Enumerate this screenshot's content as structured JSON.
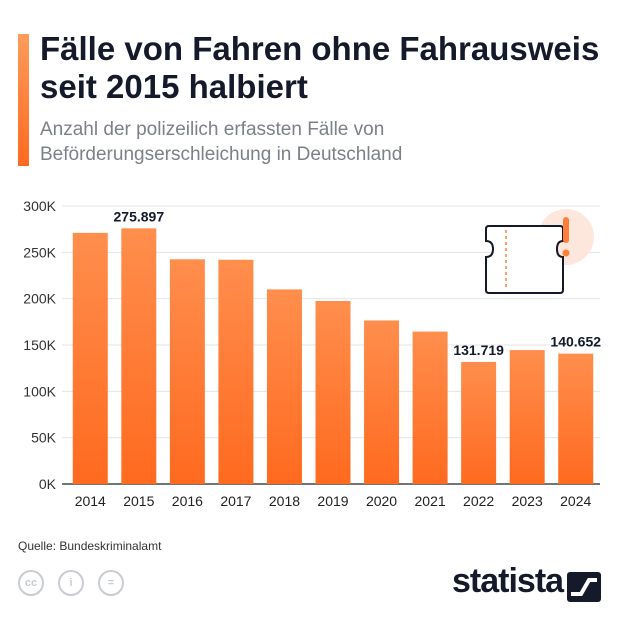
{
  "header": {
    "title": "Fälle von Fahren ohne Fahrausweis seit 2015 halbiert",
    "subtitle": "Anzahl der polizeilich erfassten Fälle von Beförderungserschleichung in Deutschland"
  },
  "footer": {
    "source": "Quelle: Bundeskriminalamt",
    "brand": "statista",
    "license_icons": [
      "cc-icon",
      "person-icon",
      "equal-icon"
    ],
    "license_glyphs": [
      "cc",
      "i",
      "="
    ]
  },
  "colors": {
    "bar_top": "#ff8e4d",
    "bar_bottom": "#ff6a1f",
    "accent": "#ff7f3a",
    "text_dark": "#141a2a",
    "grid": "#e3e5e8"
  },
  "chart_data": {
    "type": "bar",
    "categories": [
      "2014",
      "2015",
      "2016",
      "2017",
      "2018",
      "2019",
      "2020",
      "2021",
      "2022",
      "2023",
      "2024"
    ],
    "values": [
      271000,
      275897,
      242500,
      242000,
      210000,
      197500,
      176500,
      164500,
      131719,
      144500,
      140652
    ],
    "ylim": [
      0,
      300000
    ],
    "yticks": [
      0,
      50000,
      100000,
      150000,
      200000,
      250000,
      300000
    ],
    "ytick_labels": [
      "0K",
      "50K",
      "100K",
      "150K",
      "200K",
      "250K",
      "300K"
    ],
    "data_labels": [
      {
        "category": "2015",
        "text": "275.897"
      },
      {
        "category": "2022",
        "text": "131.719"
      },
      {
        "category": "2024",
        "text": "140.652"
      }
    ],
    "grid": true,
    "annotation_icon": "ticket-warning-icon"
  }
}
